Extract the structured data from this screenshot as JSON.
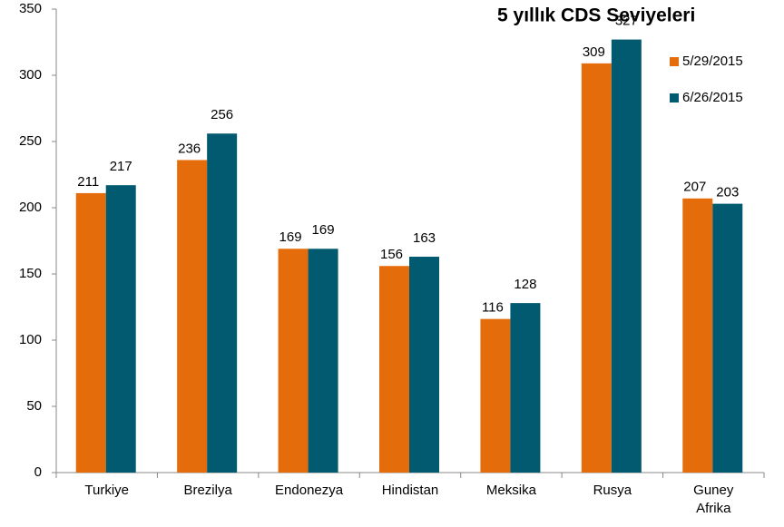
{
  "chart_data": {
    "type": "bar",
    "title": "5 yıllık CDS Seviyeleri",
    "categories": [
      "Turkiye",
      "Brezilya",
      "Endonezya",
      "Hindistan",
      "Meksika",
      "Rusya",
      "Guney Afrika"
    ],
    "series": [
      {
        "name": "5/29/2015",
        "color": "#e46c0a",
        "values": [
          211,
          236,
          169,
          156,
          116,
          309,
          207
        ]
      },
      {
        "name": "6/26/2015",
        "color": "#025a70",
        "values": [
          217,
          256,
          169,
          163,
          128,
          327,
          203
        ]
      }
    ],
    "ylim": [
      0,
      350
    ],
    "yticks": [
      0,
      50,
      100,
      150,
      200,
      250,
      300,
      350
    ],
    "grid": false,
    "legend": "right"
  }
}
